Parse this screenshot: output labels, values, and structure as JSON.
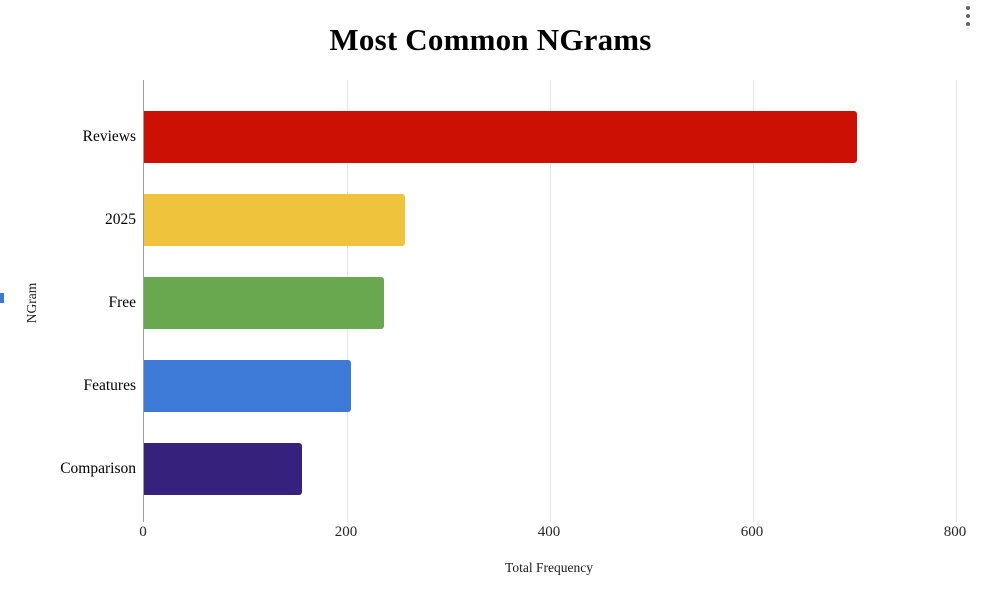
{
  "icons": {
    "context_menu": "kebab-vertical-dots"
  },
  "chart_data": {
    "type": "bar",
    "orientation": "horizontal",
    "title": "Most Common NGrams",
    "xlabel": "Total Frequency",
    "ylabel": "NGram",
    "categories": [
      "Reviews",
      "2025",
      "Free",
      "Features",
      "Comparison"
    ],
    "values": [
      702,
      257,
      236,
      204,
      156
    ],
    "colors": [
      "#cc1104",
      "#f0c33c",
      "#6aa84f",
      "#3d7ad8",
      "#36217d"
    ],
    "xlim": [
      0,
      800
    ],
    "xticks": [
      0,
      200,
      400,
      600,
      800
    ],
    "grid": true,
    "legend_position": "clipped-left-edge",
    "legend_fragment_color": "#3c78d8",
    "axis_color": "#9e9e9e",
    "gridline_color": "#e4e4e4"
  }
}
